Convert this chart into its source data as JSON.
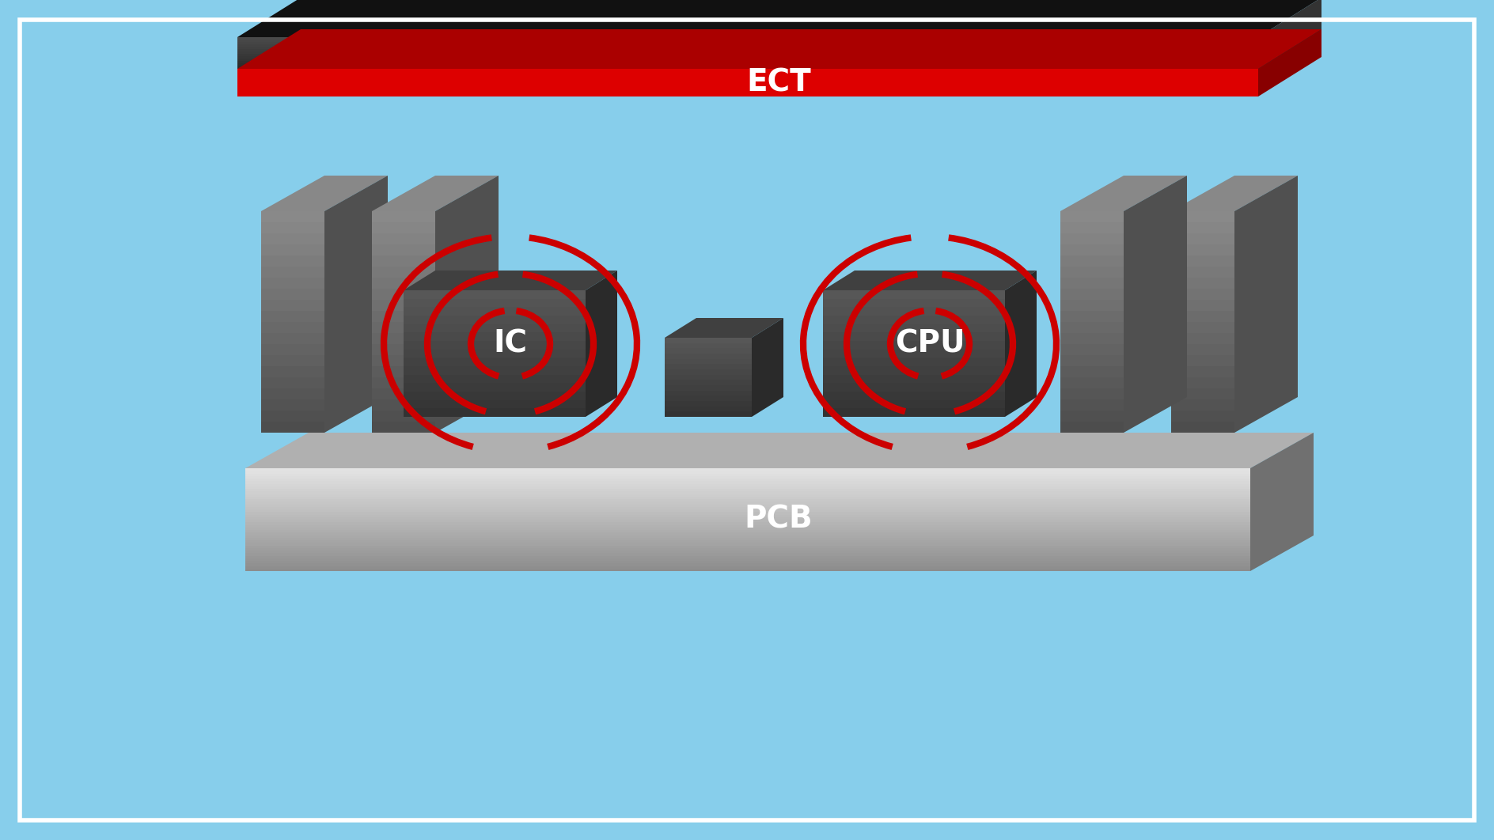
{
  "bg_color": "#87CEEB",
  "ect_label": "ECT",
  "pcb_label": "PCB",
  "ic_label": "IC",
  "cpu_label": "CPU",
  "red_color": "#CC0000",
  "white_color": "#FFFFFF",
  "dark_color": "#222222",
  "gray_light": "#C0C0C0",
  "gray_mid": "#888888",
  "gray_dark": "#555555",
  "red_stripe": "#DD0000",
  "label_fontsize": 28
}
